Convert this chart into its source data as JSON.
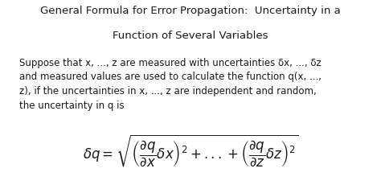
{
  "title_line1": "General Formula for Error Propagation:  Uncertainty in a",
  "title_line2": "Function of Several Variables",
  "body_text": "Suppose that x, ..., z are measured with uncertainties δx, ..., δz\nand measured values are used to calculate the function q(x, ...,\nz), if the uncertainties in x, ..., z are independent and random,\nthe uncertainty in q is",
  "formula": "$\\delta q = \\sqrt{\\left(\\dfrac{\\partial q}{\\partial x}\\delta x\\right)^{2} + ...+\\left(\\dfrac{\\partial q}{\\partial z}\\delta z\\right)^{2}}$",
  "background_color": "#ffffff",
  "text_color": "#1a1a1a",
  "title_fontsize": 9.5,
  "body_fontsize": 8.5,
  "formula_fontsize": 12
}
